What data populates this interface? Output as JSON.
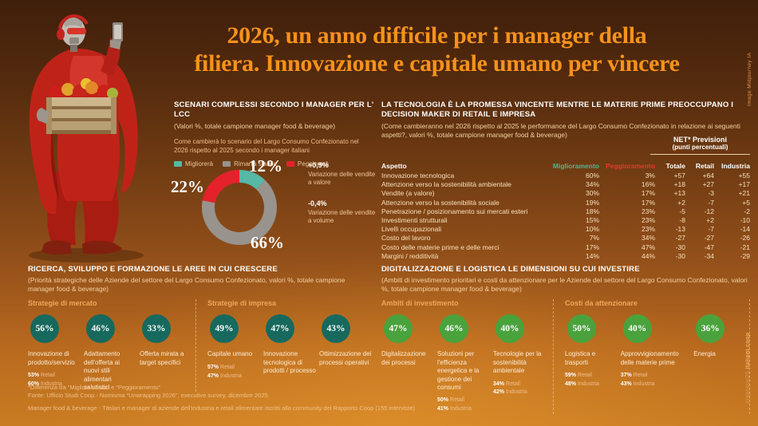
{
  "title": {
    "line1": "2026, un anno difficile per i manager della",
    "line2": "filiera. Innovazione e capitale umano per vincere"
  },
  "meta": {
    "image_credit": "Image Midjourney IA",
    "hashtag": "#rapcoop25",
    "site": "italiani.coop"
  },
  "colors": {
    "title_orange": "#f6921c",
    "improve_teal": "#56b8a5",
    "stable_gray": "#98938d",
    "worsen_red": "#e5212b",
    "research_circle": "#17695e",
    "invest_circle": "#4aa23c",
    "migl_green": "#4db890",
    "pegg_red": "#e6392b"
  },
  "scenario": {
    "heading": "SCENARI COMPLESSI SECONDO I MANAGER PER L' LCC",
    "subheading": "(Valori %, totale campione manager food & beverage)",
    "question": "Come cambierà lo scenario del Largo Consumo Confezionato nel 2026 rispetto al 2025 secondo i manager italiani",
    "legend": [
      {
        "label": "Migliorerà",
        "color": "#56b8a5"
      },
      {
        "label": "Rimarrà stabile",
        "color": "#98938d"
      },
      {
        "label": "Peggiorerà",
        "color": "#e5212b"
      }
    ],
    "donut": {
      "improve_label": "12%",
      "stable_label": "66%",
      "worsen_label": "22%"
    },
    "annotations": [
      {
        "value": "+0,9%",
        "label": "Variazione delle vendite a valore"
      },
      {
        "value": "-0,4%",
        "label": "Variazione delle vendite a volume"
      }
    ]
  },
  "tech": {
    "heading": "LA TECNOLOGIA È LA PROMESSA VINCENTE MENTRE LE MATERIE PRIME PREOCCUPANO I DECISION MAKER DI RETAIL E IMPRESA",
    "subheading": "(Come cambieranno nel 2026 rispetto al 2025 le performance del Largo Consumo Confezionato in relazione ai seguenti aspetti?, valori %, totale campione manager food & beverage)",
    "net_title": "NET* Previsioni",
    "net_subtitle": "(punti percentuali)",
    "col": {
      "aspetto": "Aspetto",
      "migl": "Miglioramento",
      "pegg": "Peggioramento",
      "totale": "Totale",
      "retail": "Retail",
      "industria": "Industria"
    },
    "rows": [
      {
        "a": "Innovazione tecnologica",
        "m": "60%",
        "p": "3%",
        "t": "+57",
        "r": "+64",
        "i": "+55"
      },
      {
        "a": "Attenzione verso la sostenibilità ambientale",
        "m": "34%",
        "p": "16%",
        "t": "+18",
        "r": "+27",
        "i": "+17"
      },
      {
        "a": "Vendite (a valore)",
        "m": "30%",
        "p": "17%",
        "t": "+13",
        "r": "-3",
        "i": "+21"
      },
      {
        "a": "Attenzione verso la sostenibilità sociale",
        "m": "19%",
        "p": "17%",
        "t": "+2",
        "r": "-7",
        "i": "+5"
      },
      {
        "a": "Penetrazione / posizionamento sui mercati esteri",
        "m": "18%",
        "p": "23%",
        "t": "-5",
        "r": "-12",
        "i": "-2"
      },
      {
        "a": "Investimenti strutturali",
        "m": "15%",
        "p": "23%",
        "t": "-8",
        "r": "+2",
        "i": "-10"
      },
      {
        "a": "Livelli occupazionali",
        "m": "10%",
        "p": "23%",
        "t": "-13",
        "r": "-7",
        "i": "-14"
      },
      {
        "a": "Costo del lavoro",
        "m": "7%",
        "p": "34%",
        "t": "-27",
        "r": "-27",
        "i": "-26"
      },
      {
        "a": "Costo delle materie prime e delle merci",
        "m": "17%",
        "p": "47%",
        "t": "-30",
        "r": "-47",
        "i": "-21"
      },
      {
        "a": "Margini / redditività",
        "m": "14%",
        "p": "44%",
        "t": "-30",
        "r": "-34",
        "i": "-29"
      }
    ]
  },
  "research": {
    "heading": "RICERCA, SVILUPPO E FORMAZIONE LE AREE IN CUI CRESCERE",
    "subheading": "(Priorità strategiche delle Aziende del settore del Largo Consumo Confezionato, valori %, totale campione manager food & beverage)",
    "circle_color": "#17695e",
    "groups": [
      {
        "label": "Strategie di mercato",
        "stats": [
          {
            "pct": "56%",
            "label": "Innovazione di prodotto/servizio",
            "retail_pct": "53%",
            "retail_label": "Retail",
            "industria_pct": "60%",
            "industria_label": "Industria"
          },
          {
            "pct": "46%",
            "label": "Adattamento dell'offerta ai nuovi stili alimentari salutistici"
          },
          {
            "pct": "33%",
            "label": "Offerta mirata a target specifici"
          }
        ]
      },
      {
        "label": "Strategie di impresa",
        "stats": [
          {
            "pct": "49%",
            "label": "Capitale umano",
            "retail_pct": "57%",
            "retail_label": "Retail",
            "industria_pct": "47%",
            "industria_label": "Industria"
          },
          {
            "pct": "47%",
            "label": "Innovazione tecnologica di prodotti / processo"
          },
          {
            "pct": "43%",
            "label": "Ottimizzazione dei processi operativi"
          }
        ]
      }
    ]
  },
  "invest": {
    "heading": "DIGITALIZZAZIONE E LOGISTICA LE DIMENSIONI SU CUI INVESTIRE",
    "subheading": "(Ambiti di investimento prioritari e costi da attenzionare per le Aziende del settore del Largo Consumo Confezionato, valori %, totale campione manager food & beverage)",
    "circle_color": "#4aa23c",
    "groups": [
      {
        "label": "Ambiti di investimento",
        "stats": [
          {
            "pct": "47%",
            "label": "Digitalizzazione dei processi"
          },
          {
            "pct": "46%",
            "label": "Soluzioni per l'efficienza energetica e la gestione dei consumi",
            "retail_pct": "50%",
            "retail_label": "Retail",
            "industria_pct": "41%",
            "industria_label": "Industria"
          },
          {
            "pct": "40%",
            "label": "Tecnologie per la sostenibilità ambientale",
            "retail_pct": "34%",
            "retail_label": "Retail",
            "industria_pct": "42%",
            "industria_label": "Industria"
          }
        ]
      },
      {
        "label": "Costi da attenzionare",
        "stats": [
          {
            "pct": "50%",
            "label": "Logistica e trasporti",
            "retail_pct": "59%",
            "retail_label": "Retail",
            "industria_pct": "48%",
            "industria_label": "Industria"
          },
          {
            "pct": "40%",
            "label": "Approvvigionamento delle materie prime",
            "retail_pct": "37%",
            "retail_label": "Retail",
            "industria_pct": "43%",
            "industria_label": "Industria"
          },
          {
            "pct": "36%",
            "label": "Energia"
          }
        ]
      }
    ]
  },
  "footer": {
    "note1": "*Differenza tra “Miglioramento” e “Peggioramento”",
    "note2": "Fonte: Ufficio Studi Coop - Nomisma “Unwrapping 2026”, executive survey, dicembre 2025",
    "note3": "Manager food & beverage -  Titolari e manager di aziende dell'industria e retail alimentare iscritti alla community del Rapporto Coop (155 interviste)"
  },
  "chart_data": [
    {
      "type": "pie",
      "title": "Come cambierà lo scenario del Largo Consumo Confezionato nel 2026 rispetto al 2025 secondo i manager italiani",
      "labels": [
        "Migliorerà",
        "Rimarrà stabile",
        "Peggiorerà"
      ],
      "values": [
        12,
        66,
        22
      ],
      "colors": [
        "#56b8a5",
        "#98938d",
        "#e5212b"
      ],
      "unit": "%",
      "legend_position": "top",
      "annotations": [
        {
          "value": "+0,9%",
          "label": "Variazione delle vendite a valore"
        },
        {
          "value": "-0,4%",
          "label": "Variazione delle vendite a volume"
        }
      ]
    },
    {
      "type": "table",
      "title": "LA TECNOLOGIA È LA PROMESSA VINCENTE MENTRE LE MATERIE PRIME PREOCCUPANO I DECISION MAKER DI RETAIL E IMPRESA",
      "columns": [
        "Aspetto",
        "Miglioramento",
        "Peggioramento",
        "NET Totale",
        "NET Retail",
        "NET Industria"
      ],
      "rows": [
        [
          "Innovazione tecnologica",
          60,
          3,
          57,
          64,
          55
        ],
        [
          "Attenzione verso la sostenibilità ambientale",
          34,
          16,
          18,
          27,
          17
        ],
        [
          "Vendite (a valore)",
          30,
          17,
          13,
          -3,
          21
        ],
        [
          "Attenzione verso la sostenibilità sociale",
          19,
          17,
          2,
          -7,
          5
        ],
        [
          "Penetrazione / posizionamento sui mercati esteri",
          18,
          23,
          -5,
          -12,
          -2
        ],
        [
          "Investimenti strutturali",
          15,
          23,
          -8,
          2,
          -10
        ],
        [
          "Livelli occupazionali",
          10,
          23,
          -13,
          -7,
          -14
        ],
        [
          "Costo del lavoro",
          7,
          34,
          -27,
          -27,
          -26
        ],
        [
          "Costo delle materie prime e delle merci",
          17,
          47,
          -30,
          -47,
          -21
        ],
        [
          "Margini / redditività",
          14,
          44,
          -30,
          -34,
          -29
        ]
      ]
    },
    {
      "type": "bar",
      "title": "Strategie di mercato",
      "categories": [
        "Innovazione di prodotto/servizio",
        "Adattamento dell'offerta ai nuovi stili alimentari salutistici",
        "Offerta mirata a target specifici"
      ],
      "values": [
        56,
        46,
        33
      ],
      "unit": "%"
    },
    {
      "type": "bar",
      "title": "Strategie di impresa",
      "categories": [
        "Capitale umano",
        "Innovazione tecnologica di prodotti / processo",
        "Ottimizzazione dei processi operativi"
      ],
      "values": [
        49,
        47,
        43
      ],
      "unit": "%"
    },
    {
      "type": "bar",
      "title": "Ambiti di investimento",
      "categories": [
        "Digitalizzazione dei processi",
        "Soluzioni per l'efficienza energetica e la gestione dei consumi",
        "Tecnologie per la sostenibilità ambientale"
      ],
      "values": [
        47,
        46,
        40
      ],
      "unit": "%"
    },
    {
      "type": "bar",
      "title": "Costi da attenzionare",
      "categories": [
        "Logistica e trasporti",
        "Approvvigionamento delle materie prime",
        "Energia"
      ],
      "values": [
        50,
        40,
        36
      ],
      "unit": "%"
    }
  ]
}
